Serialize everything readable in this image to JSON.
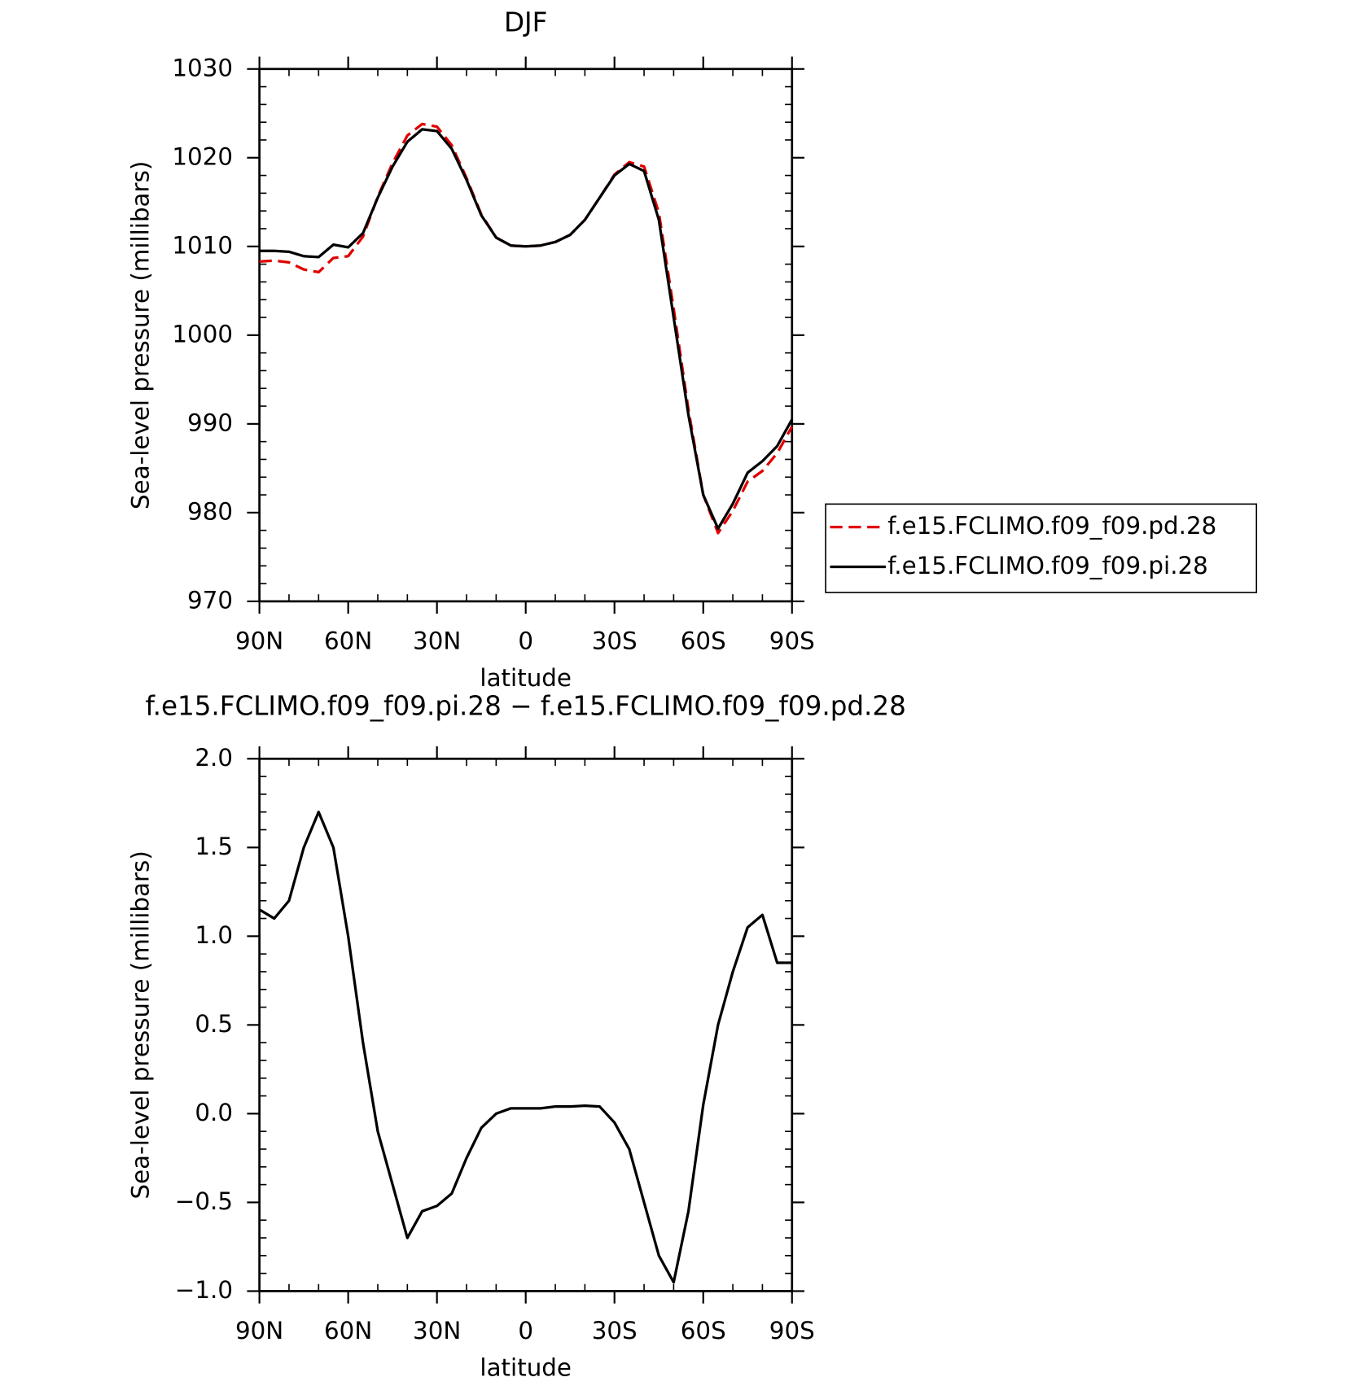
{
  "chart_data": [
    {
      "type": "line",
      "title": "DJF",
      "x_label": "latitude",
      "y_label": "Sea-level pressure (millibars)",
      "x": [
        90,
        85,
        80,
        75,
        70,
        65,
        60,
        55,
        50,
        45,
        40,
        35,
        30,
        25,
        20,
        15,
        10,
        5,
        0,
        -5,
        -10,
        -15,
        -20,
        -25,
        -30,
        -35,
        -40,
        -45,
        -50,
        -55,
        -60,
        -65,
        -70,
        -75,
        -80,
        -85,
        -90
      ],
      "series": [
        {
          "name": "f.e15.FCLIMO.f09_f09.pd.28",
          "color": "#e00000",
          "style": "dashed",
          "values": [
            1008.3,
            1008.4,
            1008.2,
            1007.4,
            1007.1,
            1008.7,
            1008.9,
            1011.1,
            1015.6,
            1019.4,
            1022.5,
            1023.8,
            1023.5,
            1021.4,
            1017.7,
            1013.6,
            1011,
            1010.1,
            1010,
            1010.1,
            1010.5,
            1011.3,
            1013,
            1015.5,
            1018.1,
            1019.5,
            1019.0,
            1013.8,
            1003,
            991.6,
            982,
            977.7,
            980.2,
            983.5,
            984.7,
            986.7,
            989.7
          ]
        },
        {
          "name": "f.e15.FCLIMO.f09_f09.pi.28",
          "color": "#000000",
          "style": "solid",
          "values": [
            1009.5,
            1009.5,
            1009.4,
            1008.9,
            1008.8,
            1010.2,
            1009.9,
            1011.5,
            1015.5,
            1019,
            1021.8,
            1023.2,
            1023.0,
            1021,
            1017.5,
            1013.5,
            1011,
            1010.1,
            1010,
            1010.1,
            1010.5,
            1011.3,
            1013,
            1015.5,
            1018,
            1019.3,
            1018.5,
            1013,
            1002,
            991,
            982,
            978.2,
            981,
            984.5,
            985.8,
            987.5,
            990.5
          ]
        }
      ],
      "xlim": [
        90,
        -90
      ],
      "xticks": [
        {
          "value": 90,
          "label": "90N"
        },
        {
          "value": 60,
          "label": "60N"
        },
        {
          "value": 30,
          "label": "30N"
        },
        0,
        {
          "value": -30,
          "label": "30S"
        },
        {
          "value": -60,
          "label": "60S"
        },
        {
          "value": -90,
          "label": "90S"
        }
      ],
      "minor_xticks": [
        80,
        70,
        50,
        40,
        20,
        10,
        -10,
        -20,
        -40,
        -50,
        -70,
        -80
      ],
      "ylim": [
        970,
        1030
      ],
      "yticks": [
        970,
        980,
        990,
        1000,
        1010,
        1020,
        1030
      ],
      "minor_yticks": [
        972,
        974,
        976,
        978,
        982,
        984,
        986,
        988,
        992,
        994,
        996,
        998,
        1002,
        1004,
        1006,
        1008,
        1012,
        1014,
        1016,
        1018,
        1022,
        1024,
        1026,
        1028
      ],
      "legend": "right"
    },
    {
      "type": "line",
      "title": "f.e15.FCLIMO.f09_f09.pi.28 − f.e15.FCLIMO.f09_f09.pd.28",
      "x_label": "latitude",
      "y_label": "Sea-level pressure (millibars)",
      "x": [
        90,
        85,
        80,
        75,
        70,
        65,
        60,
        55,
        50,
        45,
        40,
        35,
        30,
        25,
        20,
        15,
        10,
        5,
        0,
        -5,
        -10,
        -15,
        -20,
        -25,
        -30,
        -35,
        -40,
        -45,
        -50,
        -55,
        -60,
        -65,
        -70,
        -75,
        -80,
        -85,
        -90
      ],
      "series": [
        {
          "color": "#000000",
          "style": "solid",
          "values": [
            1.15,
            1.1,
            1.2,
            1.5,
            1.7,
            1.5,
            1.0,
            0.4,
            -0.1,
            -0.4,
            -0.7,
            -0.55,
            -0.52,
            -0.45,
            -0.25,
            -0.08,
            0.0,
            0.03,
            0.03,
            0.03,
            0.04,
            0.04,
            0.045,
            0.04,
            -0.05,
            -0.2,
            -0.5,
            -0.8,
            -0.95,
            -0.55,
            0.05,
            0.5,
            0.8,
            1.05,
            1.12,
            0.85,
            0.85
          ]
        }
      ],
      "xlim": [
        90,
        -90
      ],
      "xticks": [
        {
          "value": 90,
          "label": "90N"
        },
        {
          "value": 60,
          "label": "60N"
        },
        {
          "value": 30,
          "label": "30N"
        },
        0,
        {
          "value": -30,
          "label": "30S"
        },
        {
          "value": -60,
          "label": "60S"
        },
        {
          "value": -90,
          "label": "90S"
        }
      ],
      "minor_xticks": [
        80,
        70,
        50,
        40,
        20,
        10,
        -10,
        -20,
        -40,
        -50,
        -70,
        -80
      ],
      "ylim": [
        -1,
        2
      ],
      "yticks": [
        {
          "value": -1,
          "label": "−1.0"
        },
        {
          "value": -0.5,
          "label": "−0.5"
        },
        {
          "value": 0,
          "label": "0.0"
        },
        {
          "value": 0.5,
          "label": "0.5"
        },
        {
          "value": 1,
          "label": "1.0"
        },
        {
          "value": 1.5,
          "label": "1.5"
        },
        {
          "value": 2,
          "label": "2.0"
        }
      ],
      "minor_yticks": [
        -0.9,
        -0.8,
        -0.7,
        -0.6,
        -0.4,
        -0.3,
        -0.2,
        -0.1,
        0.1,
        0.2,
        0.3,
        0.4,
        0.6,
        0.7,
        0.8,
        0.9,
        1.1,
        1.2,
        1.3,
        1.4,
        1.6,
        1.7,
        1.8,
        1.9
      ]
    }
  ]
}
